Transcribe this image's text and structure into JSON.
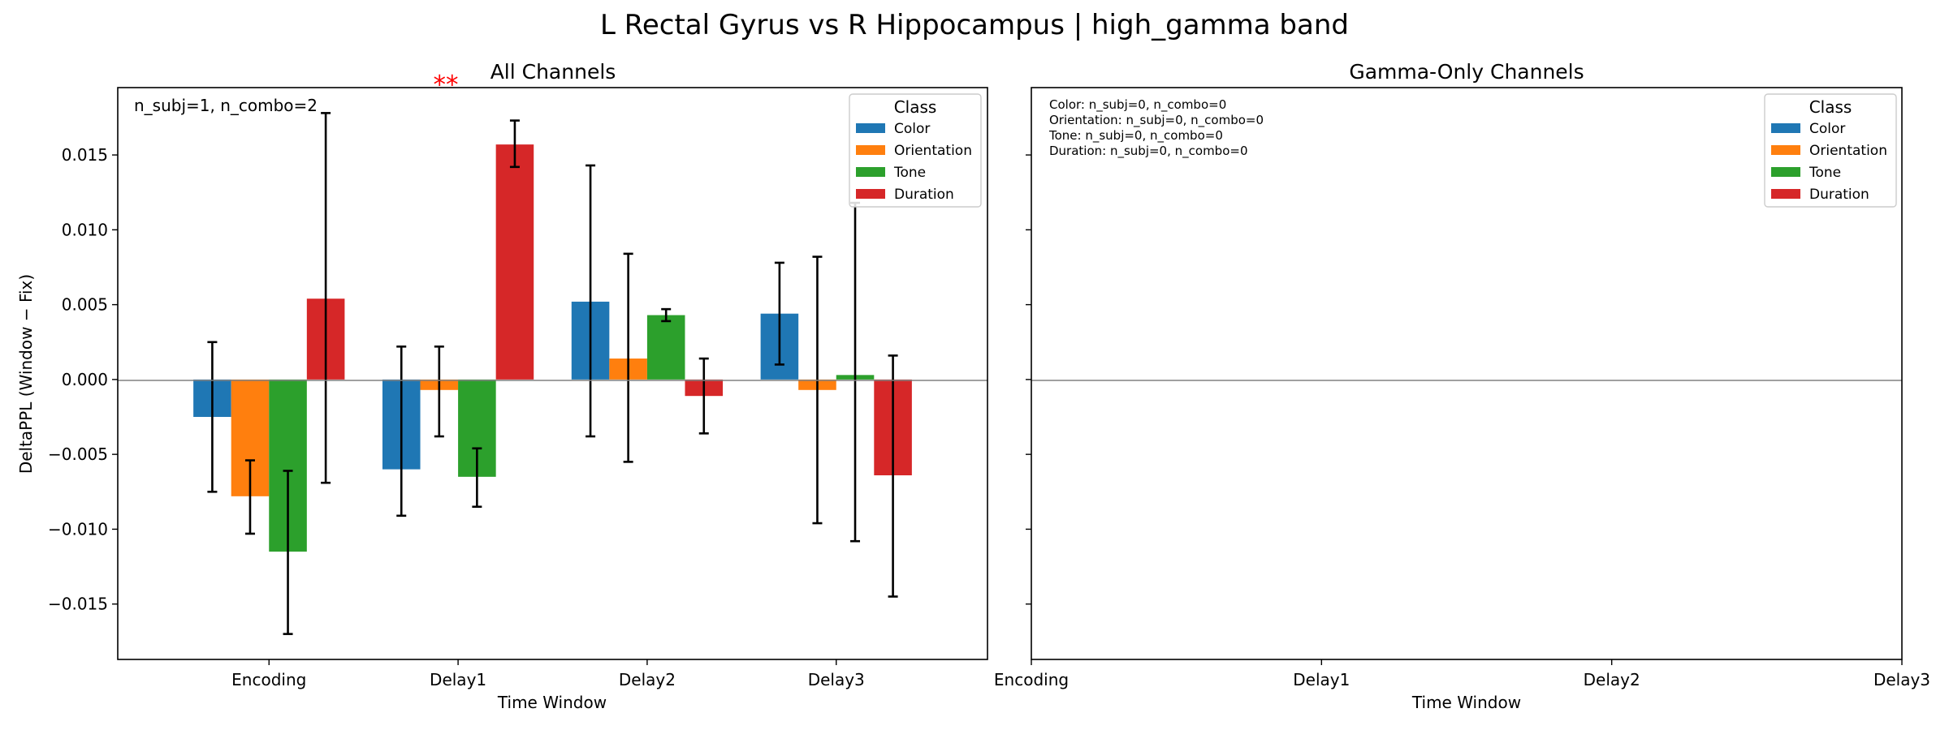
{
  "figure": {
    "suptitle": "L Rectal Gyrus vs R Hippocampus  |  high_gamma band"
  },
  "legend": {
    "title": "Class",
    "entries": [
      {
        "label": "Color",
        "color": "#1f77b4"
      },
      {
        "label": "Orientation",
        "color": "#ff7f0e"
      },
      {
        "label": "Tone",
        "color": "#2ca02c"
      },
      {
        "label": "Duration",
        "color": "#d62728"
      }
    ]
  },
  "panels": {
    "left": {
      "title": "All Channels",
      "annotation": "n_subj=1, n_combo=2",
      "sig_marker": "**"
    },
    "right": {
      "title": "Gamma-Only Channels",
      "annotation_lines": [
        "Color: n_subj=0, n_combo=0",
        "Orientation: n_subj=0, n_combo=0",
        "Tone: n_subj=0, n_combo=0",
        "Duration: n_subj=0, n_combo=0"
      ]
    }
  },
  "chart_data": [
    {
      "type": "bar",
      "title": "All Channels",
      "xlabel": "Time Window",
      "ylabel": "DeltaPPL (Window − Fix)",
      "categories": [
        "Encoding",
        "Delay1",
        "Delay2",
        "Delay3"
      ],
      "ylim": [
        -0.0187,
        0.0195
      ],
      "yticks": [
        -0.015,
        -0.01,
        -0.005,
        0.0,
        0.005,
        0.01,
        0.015
      ],
      "ytick_labels": [
        "−0.015",
        "−0.010",
        "−0.005",
        "0.000",
        "0.005",
        "0.010",
        "0.015"
      ],
      "legend_position": "top-right",
      "grid": false,
      "series": [
        {
          "name": "Color",
          "color": "#1f77b4",
          "values": [
            -0.0025,
            -0.006,
            0.0052,
            0.0044
          ],
          "err_low": [
            -0.0075,
            -0.0091,
            -0.0038,
            0.001
          ],
          "err_high": [
            0.0025,
            0.0022,
            0.0143,
            0.0078
          ]
        },
        {
          "name": "Orientation",
          "color": "#ff7f0e",
          "values": [
            -0.0078,
            -0.0007,
            0.0014,
            -0.0007
          ],
          "err_low": [
            -0.0103,
            -0.0038,
            -0.0055,
            -0.0096
          ],
          "err_high": [
            -0.0054,
            0.0022,
            0.0084,
            0.0082
          ]
        },
        {
          "name": "Tone",
          "color": "#2ca02c",
          "values": [
            -0.0115,
            -0.0065,
            0.0043,
            0.0003
          ],
          "err_low": [
            -0.017,
            -0.0085,
            0.0039,
            -0.0108
          ],
          "err_high": [
            -0.0061,
            -0.0046,
            0.0047,
            0.0118
          ]
        },
        {
          "name": "Duration",
          "color": "#d62728",
          "values": [
            0.0054,
            0.0157,
            -0.0011,
            -0.0064
          ],
          "err_low": [
            -0.0069,
            0.0142,
            -0.0036,
            -0.0145
          ],
          "err_high": [
            0.0178,
            0.0173,
            0.0014,
            0.0016
          ]
        }
      ],
      "significance": {
        "category": "Delay1",
        "series": "Duration",
        "label": "**",
        "color": "#ff0000"
      }
    },
    {
      "type": "bar",
      "title": "Gamma-Only Channels",
      "xlabel": "Time Window",
      "ylabel": "",
      "categories": [
        "Encoding",
        "Delay1",
        "Delay2",
        "Delay3"
      ],
      "ylim": [
        -0.0187,
        0.0195
      ],
      "legend_position": "top-right",
      "grid": false,
      "series": []
    }
  ]
}
